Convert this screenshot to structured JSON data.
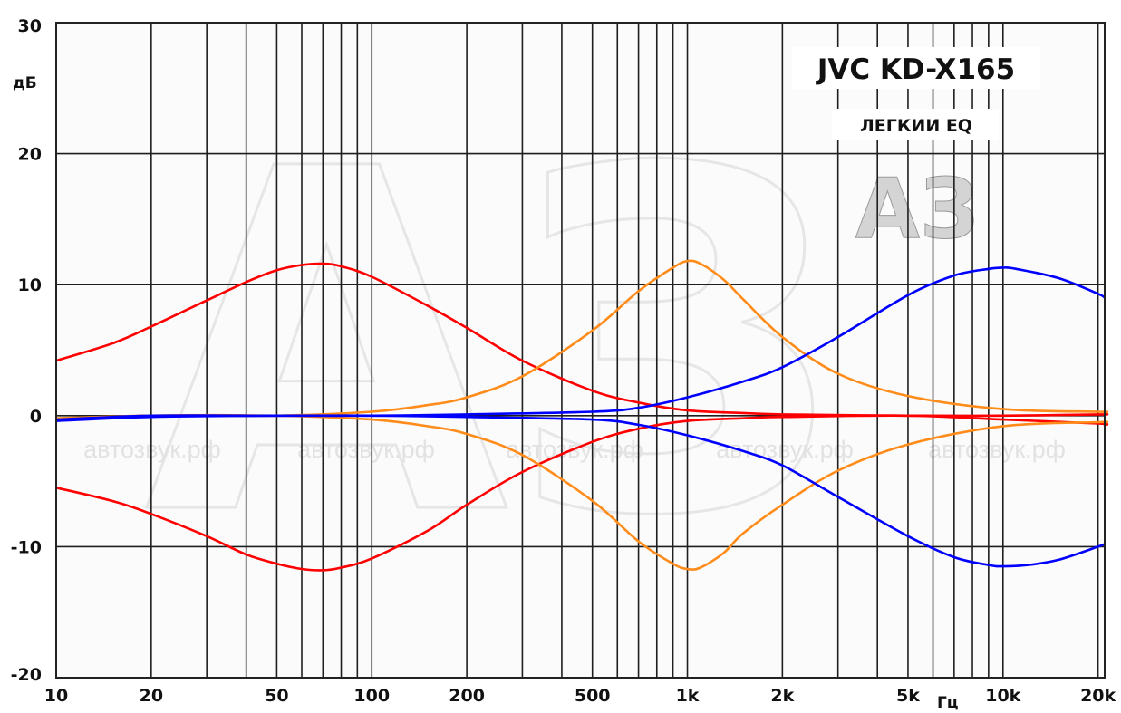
{
  "chart_data": {
    "type": "line",
    "title": "JVC KD-X165",
    "subtitle": "ЛЕГКИИ EQ",
    "xlabel": "Гц",
    "ylabel": "дБ",
    "xscale": "log",
    "xlim": [
      10,
      21000
    ],
    "ylim": [
      -20,
      30
    ],
    "x_ticks": [
      {
        "value": 10,
        "label": "10"
      },
      {
        "value": 20,
        "label": "20"
      },
      {
        "value": 50,
        "label": "50"
      },
      {
        "value": 100,
        "label": "100"
      },
      {
        "value": 200,
        "label": "200"
      },
      {
        "value": 500,
        "label": "500"
      },
      {
        "value": 1000,
        "label": "1k"
      },
      {
        "value": 2000,
        "label": "2k"
      },
      {
        "value": 5000,
        "label": "5k"
      },
      {
        "value": 10000,
        "label": "10k"
      },
      {
        "value": 20000,
        "label": "20k"
      }
    ],
    "y_ticks": [
      {
        "value": -20,
        "label": "-20"
      },
      {
        "value": -10,
        "label": "-10"
      },
      {
        "value": 0,
        "label": "0"
      },
      {
        "value": 10,
        "label": "10"
      },
      {
        "value": 20,
        "label": "20"
      },
      {
        "value": 30,
        "label": "30"
      }
    ],
    "grid": true,
    "legend": "none",
    "series": [
      {
        "color": "#ff0000",
        "x": [
          10,
          15,
          20,
          30,
          40,
          50,
          60,
          70,
          80,
          100,
          150,
          200,
          300,
          500,
          700,
          1000,
          1500,
          2000,
          5000,
          10000,
          20000,
          21000
        ],
        "y": [
          4.2,
          5.5,
          6.8,
          8.8,
          10.2,
          11.1,
          11.5,
          11.6,
          11.4,
          10.6,
          8.4,
          6.7,
          4.2,
          1.9,
          1.0,
          0.4,
          0.2,
          0.1,
          0.0,
          0.0,
          0.1,
          0.1
        ]
      },
      {
        "color": "#ff0000",
        "x": [
          10,
          15,
          20,
          30,
          40,
          50,
          60,
          70,
          80,
          100,
          150,
          200,
          300,
          500,
          700,
          1000,
          1500,
          2000,
          5000,
          10000,
          20000,
          21000
        ],
        "y": [
          -5.5,
          -6.5,
          -7.5,
          -9.2,
          -10.6,
          -11.3,
          -11.7,
          -11.8,
          -11.6,
          -10.9,
          -8.8,
          -6.8,
          -4.3,
          -2.0,
          -1.0,
          -0.4,
          -0.2,
          -0.1,
          0.0,
          -0.3,
          -0.6,
          -0.7
        ]
      },
      {
        "color": "#ff8c1a",
        "x": [
          10,
          20,
          50,
          100,
          150,
          200,
          300,
          500,
          700,
          900,
          1000,
          1100,
          1300,
          1500,
          2000,
          3000,
          5000,
          10000,
          20000,
          21000
        ],
        "y": [
          -0.2,
          0.0,
          0.0,
          0.3,
          0.8,
          1.4,
          3.0,
          6.5,
          9.5,
          11.3,
          11.8,
          11.6,
          10.4,
          8.9,
          6.0,
          3.2,
          1.5,
          0.5,
          0.3,
          0.3
        ]
      },
      {
        "color": "#ff8c1a",
        "x": [
          10,
          20,
          50,
          100,
          150,
          200,
          300,
          500,
          700,
          900,
          1000,
          1100,
          1300,
          1500,
          2000,
          3000,
          5000,
          10000,
          20000,
          21000
        ],
        "y": [
          -0.3,
          0.0,
          0.0,
          -0.3,
          -0.8,
          -1.4,
          -3.0,
          -6.5,
          -9.6,
          -11.3,
          -11.7,
          -11.6,
          -10.5,
          -9.0,
          -6.8,
          -4.2,
          -2.2,
          -0.8,
          -0.5,
          -0.5
        ]
      },
      {
        "color": "#0000ff",
        "x": [
          10,
          20,
          50,
          100,
          200,
          500,
          700,
          1000,
          1500,
          2000,
          3000,
          5000,
          7000,
          9000,
          10000,
          11000,
          15000,
          20000,
          21000
        ],
        "y": [
          -0.3,
          0.0,
          0.0,
          0.0,
          0.1,
          0.3,
          0.6,
          1.4,
          2.6,
          3.7,
          6.0,
          9.2,
          10.7,
          11.2,
          11.3,
          11.2,
          10.5,
          9.3,
          9.0
        ]
      },
      {
        "color": "#0000ff",
        "x": [
          10,
          20,
          50,
          100,
          200,
          500,
          700,
          1000,
          1500,
          2000,
          3000,
          5000,
          7000,
          9000,
          10000,
          12000,
          15000,
          20000,
          21000
        ],
        "y": [
          -0.4,
          -0.1,
          0.0,
          0.0,
          -0.1,
          -0.3,
          -0.7,
          -1.5,
          -2.7,
          -3.8,
          -6.2,
          -9.2,
          -10.8,
          -11.4,
          -11.5,
          -11.4,
          -11.0,
          -10.0,
          -9.8
        ]
      }
    ],
    "watermarks": {
      "logo": "АЗ",
      "text": [
        "автозвук.рф",
        "автозвук.рф",
        "автозвук.рф",
        "автозвук.рф",
        "автозвук.рф"
      ]
    }
  }
}
